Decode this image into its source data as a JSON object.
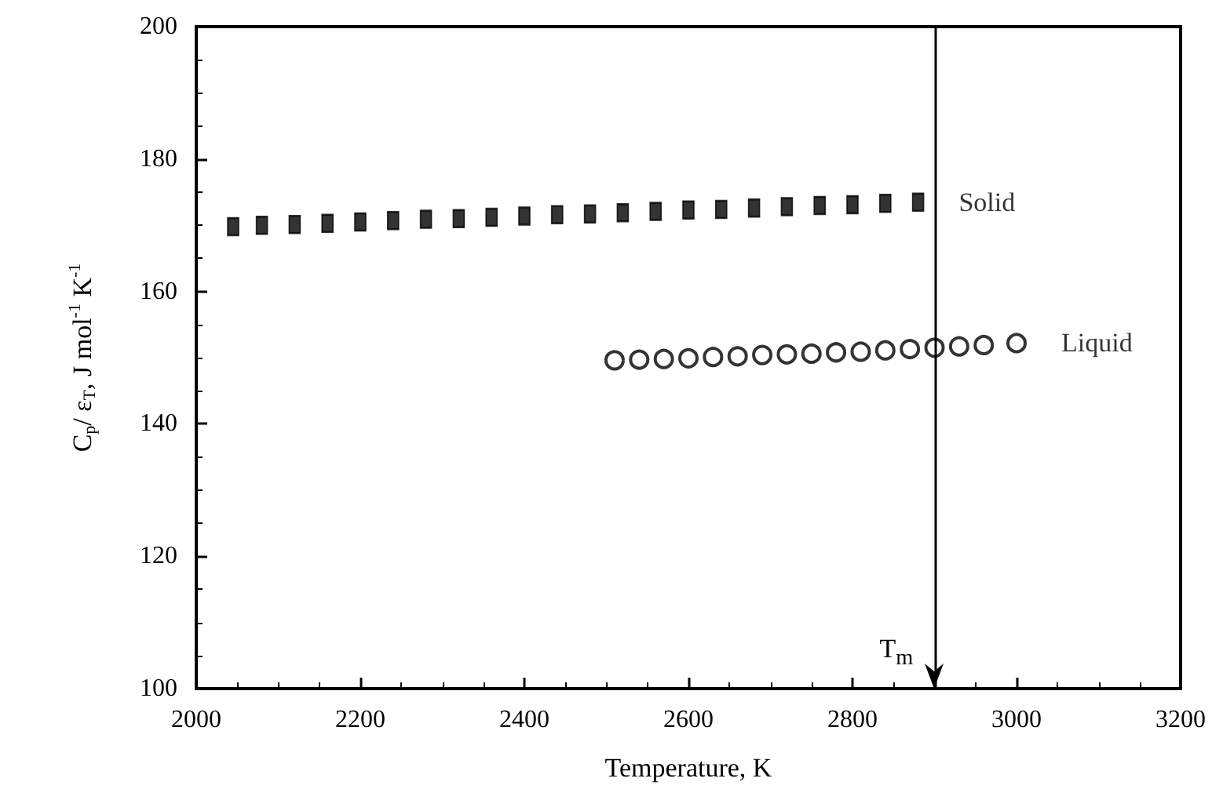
{
  "chart_data": {
    "type": "scatter",
    "xlabel": "Temperature, K",
    "ylabel": "C$_{p}$/ ε$_{T}$, J mol$^{-1}$ K$^{-1}$",
    "xlim": [
      2000,
      3200
    ],
    "xticks": [
      2000,
      2200,
      2400,
      2600,
      2800,
      3000,
      3200
    ],
    "ylim": [
      100,
      200
    ],
    "yticks": [
      100,
      120,
      140,
      160,
      180,
      200
    ],
    "grid": false,
    "legend": false,
    "series": [
      {
        "name": "Solid",
        "color": "#000000",
        "marker": "square",
        "x": [
          2045,
          2080,
          2120,
          2160,
          2200,
          2240,
          2280,
          2320,
          2360,
          2400,
          2440,
          2480,
          2520,
          2560,
          2600,
          2640,
          2680,
          2720,
          2760,
          2800,
          2840,
          2880
        ],
        "values": [
          169.8,
          170.0,
          170.1,
          170.3,
          170.5,
          170.7,
          170.9,
          171.0,
          171.2,
          171.4,
          171.6,
          171.7,
          171.9,
          172.1,
          172.3,
          172.4,
          172.6,
          172.8,
          173.0,
          173.1,
          173.3,
          173.5
        ]
      },
      {
        "name": "Liquid",
        "color": "#000000",
        "marker": "circle",
        "x": [
          2510,
          2540,
          2570,
          2600,
          2630,
          2660,
          2690,
          2720,
          2750,
          2780,
          2810,
          2840,
          2870,
          2900,
          2930,
          2960,
          3000
        ],
        "values": [
          149.6,
          149.7,
          149.8,
          149.9,
          150.1,
          150.2,
          150.4,
          150.5,
          150.6,
          150.8,
          150.9,
          151.1,
          151.3,
          151.5,
          151.7,
          151.9,
          152.2
        ]
      }
    ],
    "ref_lines": [
      {
        "axis": "x",
        "value": 2900,
        "label": "T$_{m}$"
      }
    ]
  }
}
